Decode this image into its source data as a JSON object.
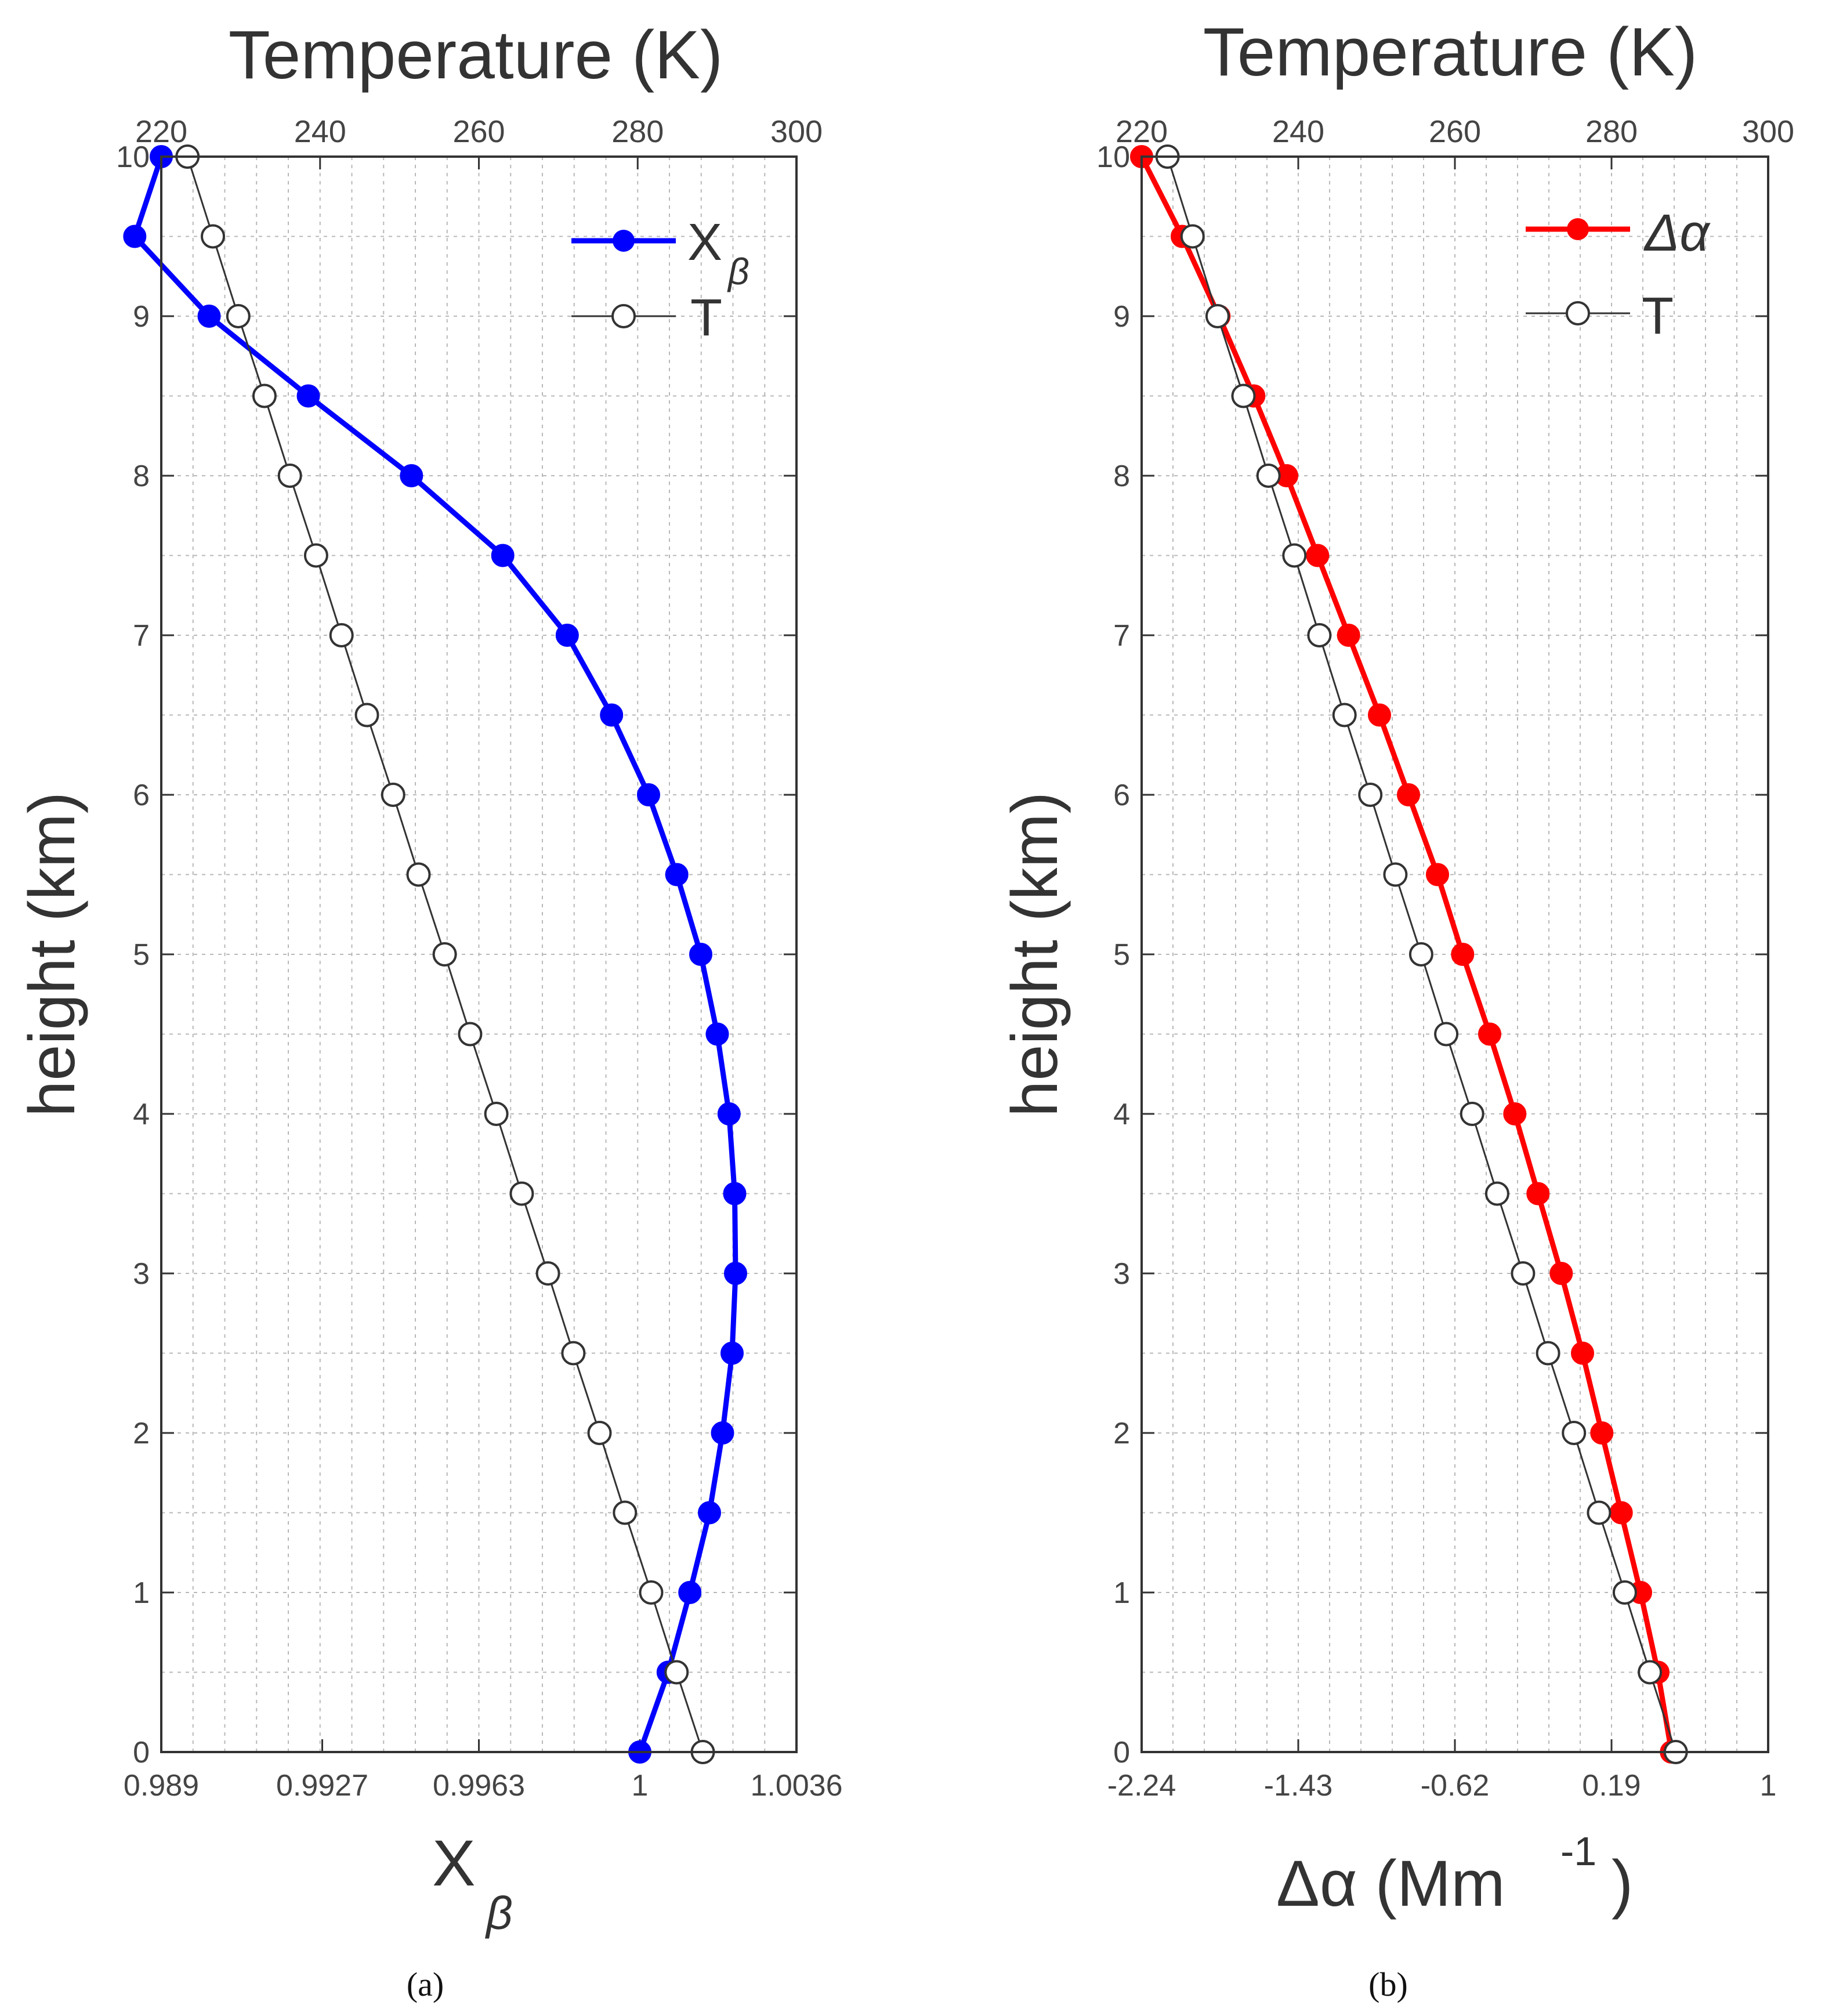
{
  "chart_data": [
    {
      "type": "line",
      "panel": "a",
      "caption": "(a)",
      "top_axis_title": "Temperature (K)",
      "top_axis_range": [
        220,
        300
      ],
      "top_ticks": [
        "220",
        "240",
        "260",
        "280",
        "300"
      ],
      "ylabel": "height (km)",
      "ylim": [
        0,
        10
      ],
      "y_ticks": [
        "0",
        "1",
        "2",
        "3",
        "4",
        "5",
        "6",
        "7",
        "8",
        "9",
        "10"
      ],
      "xlabel_main": "X",
      "xlabel_sub": "β",
      "xlim": [
        0.989,
        1.0036
      ],
      "x_ticks": [
        "0.989",
        "0.9927",
        "0.9963",
        "1",
        "1.0036"
      ],
      "grid": true,
      "legend_position": "top-right",
      "series": [
        {
          "name": "X",
          "name_sub": "β",
          "axis": "bottom",
          "color": "#0000ff",
          "marker": "filled-circle",
          "height": [
            0,
            0.5,
            1,
            1.5,
            2,
            2.5,
            3,
            3.5,
            4,
            4.5,
            5,
            5.5,
            6,
            6.5,
            7,
            7.5,
            8,
            8.5,
            9,
            9.5,
            10
          ],
          "values": [
            1.0,
            1.00065,
            1.00115,
            1.0016,
            1.0019,
            1.00212,
            1.0022,
            1.00218,
            1.00205,
            1.00178,
            1.0014,
            1.00085,
            1.0002,
            0.99935,
            0.99833,
            0.99685,
            0.99475,
            0.99238,
            0.9901,
            0.98839,
            0.989
          ]
        },
        {
          "name": "T",
          "axis": "top",
          "color": "#333333",
          "marker": "open-circle",
          "height": [
            0,
            0.5,
            1,
            1.5,
            2,
            2.5,
            3,
            3.5,
            4,
            4.5,
            5,
            5.5,
            6,
            6.5,
            7,
            7.5,
            8,
            8.5,
            9,
            9.5,
            10
          ],
          "values": [
            288.2,
            284.9,
            281.7,
            278.4,
            275.2,
            271.9,
            268.7,
            265.4,
            262.2,
            258.9,
            255.7,
            252.4,
            249.2,
            245.9,
            242.7,
            239.5,
            236.2,
            233.0,
            229.7,
            226.5,
            223.3
          ]
        }
      ]
    },
    {
      "type": "line",
      "panel": "b",
      "caption": "(b)",
      "top_axis_title": "Temperature (K)",
      "top_axis_range": [
        220,
        300
      ],
      "top_ticks": [
        "220",
        "240",
        "260",
        "280",
        "300"
      ],
      "ylabel": "height (km)",
      "ylim": [
        0,
        10
      ],
      "y_ticks": [
        "0",
        "1",
        "2",
        "3",
        "4",
        "5",
        "6",
        "7",
        "8",
        "9",
        "10"
      ],
      "xlabel_main": "Δα (Mm",
      "xlabel_sup": "-1",
      "xlabel_end": ")",
      "xlim": [
        -2.24,
        1
      ],
      "x_ticks": [
        "-2.24",
        "-1.43",
        "-0.62",
        "0.19",
        "1"
      ],
      "grid": true,
      "legend_position": "top-right",
      "series": [
        {
          "name": "Δα",
          "axis": "bottom",
          "color": "#ff0000",
          "marker": "filled-circle",
          "height": [
            0,
            0.5,
            1,
            1.5,
            2,
            2.5,
            3,
            3.5,
            4,
            4.5,
            5,
            5.5,
            6,
            6.5,
            7,
            7.5,
            8,
            8.5,
            9,
            9.5,
            10
          ],
          "values": [
            0.5,
            0.43,
            0.34,
            0.24,
            0.14,
            0.04,
            -0.07,
            -0.19,
            -0.31,
            -0.44,
            -0.58,
            -0.71,
            -0.86,
            -1.01,
            -1.17,
            -1.33,
            -1.49,
            -1.66,
            -1.84,
            -2.03,
            -2.24
          ]
        },
        {
          "name": "T",
          "axis": "top",
          "color": "#333333",
          "marker": "open-circle",
          "height": [
            0,
            0.5,
            1,
            1.5,
            2,
            2.5,
            3,
            3.5,
            4,
            4.5,
            5,
            5.5,
            6,
            6.5,
            7,
            7.5,
            8,
            8.5,
            9,
            9.5,
            10
          ],
          "values": [
            288.2,
            284.9,
            281.7,
            278.4,
            275.2,
            271.9,
            268.7,
            265.4,
            262.2,
            258.9,
            255.7,
            252.4,
            249.2,
            245.9,
            242.7,
            239.5,
            236.2,
            233.0,
            229.7,
            226.5,
            223.3
          ]
        }
      ]
    }
  ]
}
